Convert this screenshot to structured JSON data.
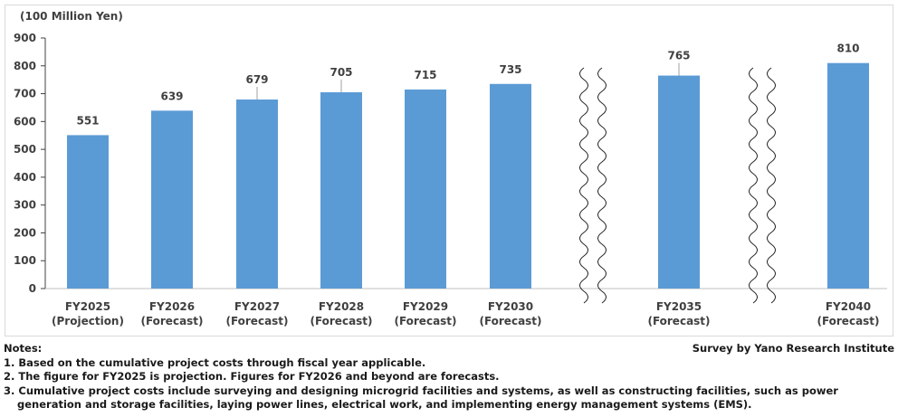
{
  "chart_data": {
    "type": "bar",
    "ylabel": "(100 Million Yen)",
    "ylim": [
      0,
      900
    ],
    "yticks": [
      0,
      100,
      200,
      300,
      400,
      500,
      600,
      700,
      800,
      900
    ],
    "categories": [
      [
        "FY2025",
        "(Projection)"
      ],
      [
        "FY2026",
        "(Forecast)"
      ],
      [
        "FY2027",
        "(Forecast)"
      ],
      [
        "FY2028",
        "(Forecast)"
      ],
      [
        "FY2029",
        "(Forecast)"
      ],
      [
        "FY2030",
        "(Forecast)"
      ],
      [
        "FY2035",
        "(Forecast)"
      ],
      [
        "FY2040",
        "(Forecast)"
      ]
    ],
    "values": [
      551,
      639,
      679,
      705,
      715,
      735,
      765,
      810
    ],
    "axis_breaks_after": [
      "FY2030",
      "FY2035"
    ],
    "bar_color": "#5b9bd5",
    "grid": false
  },
  "notes": {
    "title": "Notes:",
    "items": [
      "1. Based on the cumulative project costs through fiscal year applicable.",
      "2. The figure for FY2025 is projection. Figures for FY2026 and beyond are forecasts.",
      "3. Cumulative project costs include surveying and designing microgrid facilities and systems, as well as constructing facilities, such as power",
      "generation and storage facilities, laying power lines, electrical work, and implementing energy management systems (EMS)."
    ]
  },
  "credit": "Survey by Yano Research Institute"
}
